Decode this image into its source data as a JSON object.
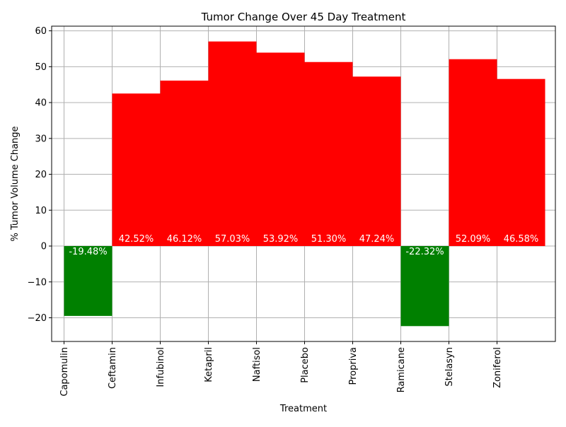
{
  "chart_data": {
    "type": "bar",
    "title": "Tumor Change Over 45 Day Treatment",
    "xlabel": "Treatment",
    "ylabel": "% Tumor Volume Change",
    "categories": [
      "Capomulin",
      "Ceftamin",
      "Infubinol",
      "Ketapril",
      "Naftisol",
      "Placebo",
      "Propriva",
      "Ramicane",
      "Stelasyn",
      "Zoniferol"
    ],
    "values": [
      -19.48,
      42.52,
      46.12,
      57.03,
      53.92,
      51.3,
      47.24,
      -22.32,
      52.09,
      46.58
    ],
    "data_labels": [
      "-19.48%",
      "42.52%",
      "46.12%",
      "57.03%",
      "53.92%",
      "51.30%",
      "47.24%",
      "-22.32%",
      "52.09%",
      "46.58%"
    ],
    "ylim": [
      -26.6,
      61.3
    ],
    "yticks": [
      -20,
      -10,
      0,
      10,
      20,
      30,
      40,
      50,
      60
    ],
    "ytick_labels": [
      "−20",
      "−10",
      "0",
      "10",
      "20",
      "30",
      "40",
      "50",
      "60"
    ],
    "grid": true,
    "colors": {
      "positive": "#ff0000",
      "negative": "#008000",
      "label_text": "#ffffff",
      "grid": "#b0b0b0"
    }
  }
}
